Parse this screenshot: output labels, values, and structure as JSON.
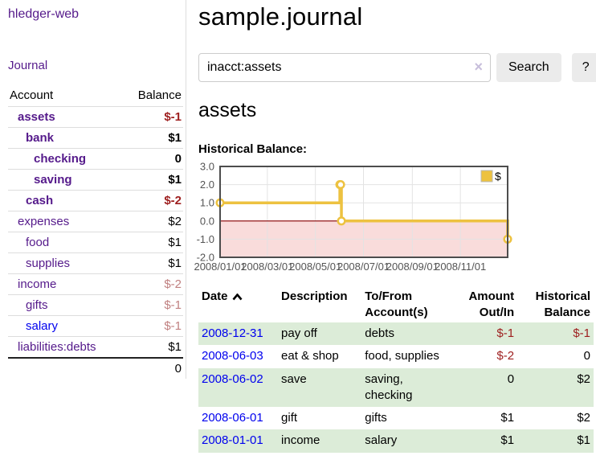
{
  "sidebar": {
    "title": "hledger-web",
    "journal_link": "Journal",
    "table": {
      "account_header": "Account",
      "balance_header": "Balance",
      "total": "0",
      "accounts": [
        {
          "name": "assets",
          "level": 1,
          "bold": true,
          "balance": "$-1",
          "balance_class": "neg"
        },
        {
          "name": "bank",
          "level": 2,
          "bold": true,
          "balance": "$1",
          "balance_class": ""
        },
        {
          "name": "checking",
          "level": 3,
          "bold": true,
          "balance": "0",
          "balance_class": ""
        },
        {
          "name": "saving",
          "level": 3,
          "bold": true,
          "balance": "$1",
          "balance_class": ""
        },
        {
          "name": "cash",
          "level": 2,
          "bold": true,
          "balance": "$-2",
          "balance_class": "neg"
        },
        {
          "name": "expenses",
          "level": 1,
          "bold": false,
          "balance": "$2",
          "balance_class": ""
        },
        {
          "name": "food",
          "level": 2,
          "bold": false,
          "balance": "$1",
          "balance_class": ""
        },
        {
          "name": "supplies",
          "level": 2,
          "bold": false,
          "balance": "$1",
          "balance_class": ""
        },
        {
          "name": "income",
          "level": 1,
          "bold": false,
          "balance": "$-2",
          "balance_class": "dimneg"
        },
        {
          "name": "gifts",
          "level": 2,
          "bold": false,
          "balance": "$-1",
          "balance_class": "dimneg"
        },
        {
          "name": "salary",
          "level": 2,
          "bold": false,
          "blue": true,
          "balance": "$-1",
          "balance_class": "dimneg"
        },
        {
          "name": "liabilities:debts",
          "level": 1,
          "bold": false,
          "balance": "$1",
          "balance_class": ""
        }
      ]
    }
  },
  "main": {
    "title": "sample.journal",
    "search": {
      "value": "inacct:assets",
      "clear_icon": "×",
      "button_label": "Search",
      "help_label": "?"
    },
    "account_heading": "assets",
    "chart_title": "Historical Balance:"
  },
  "chart_data": {
    "type": "line",
    "title": "Historical Balance of assets",
    "step": true,
    "x_range": [
      "2008-01-01",
      "2008-12-31"
    ],
    "ylim": [
      -2,
      3
    ],
    "y_ticks": [
      3,
      2,
      1,
      0,
      -1,
      -2
    ],
    "x_ticks": [
      {
        "label": "2008/01/01",
        "date": "2008-01-01"
      },
      {
        "label": "2008/03/01",
        "date": "2008-03-01"
      },
      {
        "label": "2008/05/01",
        "date": "2008-05-01"
      },
      {
        "label": "2008/07/01",
        "date": "2008-07-01"
      },
      {
        "label": "2008/09/01",
        "date": "2008-09-01"
      },
      {
        "label": "2008/11/01",
        "date": "2008-11-01"
      }
    ],
    "series": [
      {
        "name": "$",
        "color": "#EDC240",
        "points": [
          [
            "2008-01-01",
            1
          ],
          [
            "2008-06-01",
            2
          ],
          [
            "2008-06-02",
            2
          ],
          [
            "2008-06-03",
            0
          ],
          [
            "2008-12-31",
            -1
          ]
        ]
      }
    ],
    "legend_position": "top-right",
    "grid": true,
    "colors": {
      "grid": "#e3e3e3",
      "border": "#4d4d4d",
      "axis_text": "#545454",
      "negative_region": "#f9dcdb",
      "zero_line": "#8b0000",
      "marker_fill": "#ffffff"
    }
  },
  "register": {
    "headers": {
      "date": "Date",
      "description": "Description",
      "account": "To/From Account(s)",
      "amount": "Amount Out/In",
      "balance": "Historical Balance"
    },
    "rows": [
      {
        "date": "2008-12-31",
        "description": "pay off",
        "accounts": "debts",
        "amount": "$-1",
        "amount_class": "neg",
        "balance": "$-1",
        "balance_class": "neg",
        "shaded": true,
        "accounts_wrap": false
      },
      {
        "date": "2008-06-03",
        "description": "eat & shop",
        "accounts": "food, supplies",
        "amount": "$-2",
        "amount_class": "neg",
        "balance": "0",
        "balance_class": "",
        "shaded": false,
        "accounts_wrap": false
      },
      {
        "date": "2008-06-02",
        "description": "save",
        "accounts": "saving, checking",
        "amount": "0",
        "amount_class": "",
        "balance": "$2",
        "balance_class": "",
        "shaded": true,
        "accounts_wrap": true
      },
      {
        "date": "2008-06-01",
        "description": "gift",
        "accounts": "gifts",
        "amount": "$1",
        "amount_class": "",
        "balance": "$2",
        "balance_class": "",
        "shaded": false,
        "accounts_wrap": false
      },
      {
        "date": "2008-01-01",
        "description": "income",
        "accounts": "salary",
        "amount": "$1",
        "amount_class": "",
        "balance": "$1",
        "balance_class": "",
        "shaded": true,
        "accounts_wrap": false
      }
    ]
  }
}
